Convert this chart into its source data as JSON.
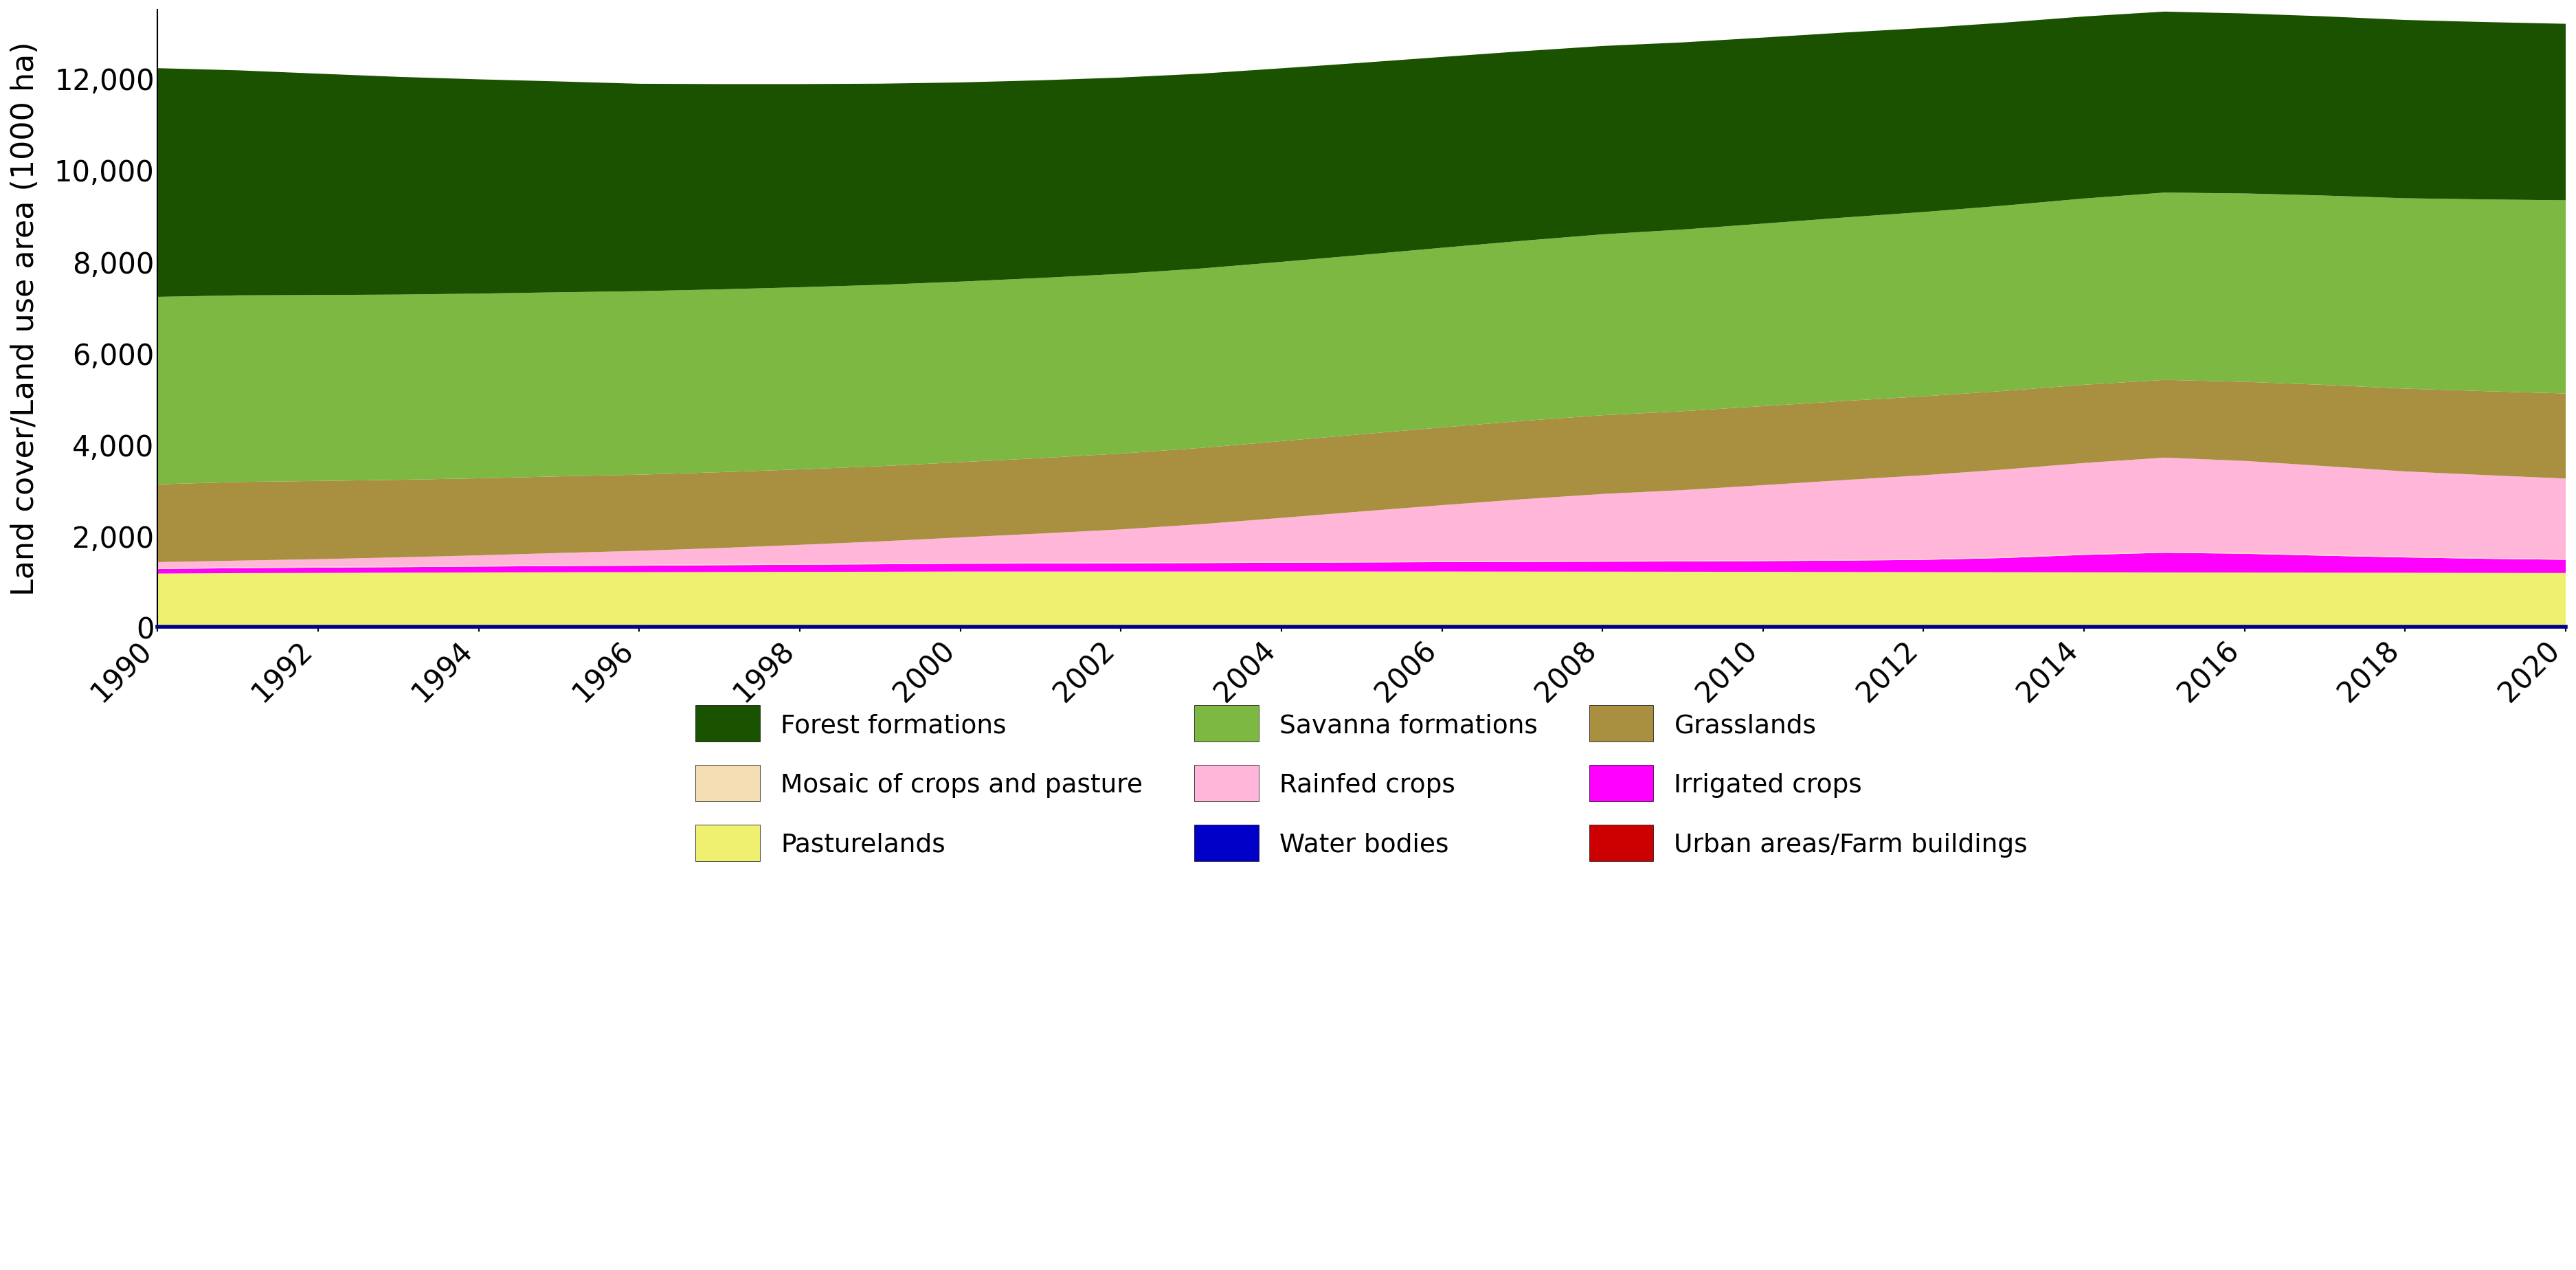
{
  "years": [
    1990,
    1991,
    1992,
    1993,
    1994,
    1995,
    1996,
    1997,
    1998,
    1999,
    2000,
    2001,
    2002,
    2003,
    2004,
    2005,
    2006,
    2007,
    2008,
    2009,
    2010,
    2011,
    2012,
    2013,
    2014,
    2015,
    2016,
    2017,
    2018,
    2019,
    2020
  ],
  "series": {
    "Water bodies": [
      15,
      15,
      15,
      15,
      15,
      15,
      15,
      15,
      15,
      15,
      15,
      15,
      15,
      15,
      15,
      15,
      15,
      15,
      15,
      15,
      15,
      15,
      15,
      15,
      15,
      15,
      15,
      15,
      15,
      15,
      15
    ],
    "Urban areas/Farm buildings": [
      5,
      5,
      5,
      5,
      5,
      5,
      5,
      5,
      5,
      5,
      5,
      5,
      5,
      5,
      5,
      5,
      5,
      5,
      5,
      5,
      5,
      5,
      5,
      5,
      5,
      5,
      5,
      5,
      5,
      5,
      5
    ],
    "Pasturelands": [
      1150,
      1160,
      1165,
      1170,
      1175,
      1180,
      1182,
      1185,
      1188,
      1190,
      1195,
      1195,
      1195,
      1195,
      1195,
      1195,
      1195,
      1193,
      1192,
      1190,
      1188,
      1185,
      1182,
      1180,
      1178,
      1175,
      1173,
      1170,
      1168,
      1165,
      1162
    ],
    "Irrigated crops": [
      100,
      108,
      115,
      120,
      128,
      135,
      140,
      148,
      155,
      163,
      170,
      175,
      180,
      185,
      192,
      198,
      205,
      212,
      218,
      225,
      235,
      248,
      268,
      310,
      380,
      430,
      410,
      370,
      335,
      308,
      290
    ],
    "Mosaic of crops and pasture": [
      20,
      20,
      20,
      20,
      20,
      20,
      20,
      20,
      20,
      20,
      20,
      20,
      20,
      20,
      20,
      20,
      20,
      20,
      20,
      20,
      20,
      20,
      20,
      20,
      20,
      20,
      20,
      20,
      20,
      20,
      20
    ],
    "Rainfed crops": [
      130,
      145,
      165,
      195,
      225,
      265,
      305,
      355,
      415,
      480,
      555,
      635,
      720,
      830,
      960,
      1095,
      1225,
      1350,
      1460,
      1540,
      1640,
      1740,
      1830,
      1915,
      1990,
      2060,
      2010,
      1940,
      1860,
      1810,
      1755
    ],
    "Grasslands": [
      1700,
      1720,
      1710,
      1695,
      1685,
      1675,
      1665,
      1658,
      1650,
      1645,
      1645,
      1650,
      1658,
      1668,
      1678,
      1688,
      1700,
      1712,
      1722,
      1725,
      1728,
      1730,
      1725,
      1718,
      1710,
      1700,
      1730,
      1775,
      1810,
      1835,
      1860
    ],
    "Savanna formations": [
      4100,
      4080,
      4065,
      4050,
      4038,
      4025,
      4012,
      3998,
      3982,
      3965,
      3948,
      3938,
      3930,
      3922,
      3920,
      3920,
      3928,
      3938,
      3955,
      3972,
      3990,
      4010,
      4030,
      4052,
      4072,
      4095,
      4118,
      4140,
      4163,
      4192,
      4225
    ],
    "Forest formations": [
      5000,
      4920,
      4840,
      4760,
      4685,
      4610,
      4535,
      4488,
      4442,
      4398,
      4355,
      4322,
      4292,
      4260,
      4232,
      4202,
      4172,
      4145,
      4118,
      4092,
      4068,
      4045,
      4022,
      4000,
      3980,
      3957,
      3935,
      3918,
      3898,
      3878,
      3858
    ]
  },
  "colors": {
    "Forest formations": "#1a5200",
    "Savanna formations": "#7db842",
    "Grasslands": "#a89040",
    "Mosaic of crops and pasture": "#f5deb3",
    "Rainfed crops": "#ffb6d8",
    "Irrigated crops": "#ff00ff",
    "Pasturelands": "#f0f070",
    "Water bodies": "#0000c8",
    "Urban areas/Farm buildings": "#cc0000"
  },
  "stack_order": [
    "Water bodies",
    "Urban areas/Farm buildings",
    "Pasturelands",
    "Irrigated crops",
    "Mosaic of crops and pasture",
    "Rainfed crops",
    "Grasslands",
    "Savanna formations",
    "Forest formations"
  ],
  "ylabel": "Land cover/Land use area (1000 ha)",
  "ylim": [
    0,
    13500
  ],
  "yticks": [
    0,
    2000,
    4000,
    6000,
    8000,
    10000,
    12000
  ],
  "xtick_years": [
    1990,
    1992,
    1994,
    1996,
    1998,
    2000,
    2002,
    2004,
    2006,
    2008,
    2010,
    2012,
    2014,
    2016,
    2018,
    2020
  ],
  "background_color": "#ffffff",
  "legend_order_col1": [
    "Forest formations",
    "Savanna formations",
    "Grasslands"
  ],
  "legend_order_col2": [
    "Mosaic of crops and pasture",
    "Rainfed crops",
    "Irrigated crops"
  ],
  "legend_order_col3": [
    "Pasturelands",
    "Water bodies",
    "Urban areas/Farm buildings"
  ]
}
